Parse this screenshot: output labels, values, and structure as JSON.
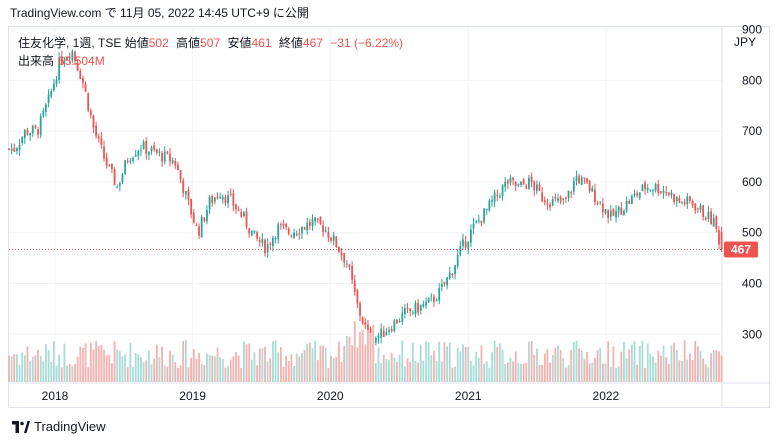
{
  "header": {
    "caption": "TradingView.com で 11月 05, 2022 14:45 UTC+9 に公開"
  },
  "legend": {
    "symbol_line": "住友化学, 1週, TSE",
    "open_label": "始値",
    "open": "502",
    "high_label": "高値",
    "high": "507",
    "low_label": "安値",
    "low": "461",
    "close_label": "終値",
    "close": "467",
    "change": "−31 (−6.22%)",
    "volume_label": "出来高",
    "volume": "65.504M"
  },
  "currency": "JPY",
  "footer": {
    "brand": "TradingView"
  },
  "colors": {
    "up": "#26a69a",
    "down": "#ef5350",
    "vol_up": "#a9dcd6",
    "vol_down": "#f5b1af",
    "grid": "#f0f3fa"
  },
  "chart_data": {
    "type": "candlestick",
    "title": "住友化学, 1週, TSE",
    "ylabel": "JPY",
    "ylim": [
      210,
      905
    ],
    "yticks": [
      300,
      400,
      500,
      600,
      700,
      800,
      900
    ],
    "xticks": [
      "2018",
      "2019",
      "2020",
      "2021",
      "2022"
    ],
    "last_price": 467,
    "series": [
      {
        "name": "price_waypoints",
        "x": [
          "2017-09",
          "2017-10",
          "2017-11",
          "2017-12",
          "2018-01",
          "2018-02",
          "2018-03",
          "2018-04",
          "2018-05",
          "2018-06",
          "2018-07",
          "2018-08",
          "2018-09",
          "2018-10",
          "2018-11",
          "2018-12",
          "2019-01",
          "2019-02",
          "2019-03",
          "2019-04",
          "2019-05",
          "2019-06",
          "2019-07",
          "2019-08",
          "2019-09",
          "2019-10",
          "2019-11",
          "2019-12",
          "2020-01",
          "2020-02",
          "2020-03",
          "2020-04",
          "2020-05",
          "2020-06",
          "2020-07",
          "2020-08",
          "2020-09",
          "2020-10",
          "2020-11",
          "2020-12",
          "2021-01",
          "2021-02",
          "2021-03",
          "2021-04",
          "2021-05",
          "2021-06",
          "2021-07",
          "2021-08",
          "2021-09",
          "2021-10",
          "2021-11",
          "2021-12",
          "2022-01",
          "2022-02",
          "2022-03",
          "2022-04",
          "2022-05",
          "2022-06",
          "2022-07",
          "2022-08",
          "2022-09",
          "2022-10",
          "2022-11"
        ],
        "values": [
          665,
          700,
          700,
          760,
          840,
          860,
          800,
          700,
          640,
          590,
          650,
          670,
          660,
          650,
          640,
          570,
          500,
          560,
          580,
          560,
          530,
          490,
          470,
          510,
          500,
          510,
          520,
          510,
          480,
          440,
          350,
          290,
          300,
          320,
          340,
          350,
          360,
          380,
          420,
          470,
          510,
          540,
          570,
          600,
          590,
          600,
          570,
          560,
          560,
          610,
          590,
          560,
          530,
          550,
          570,
          590,
          590,
          580,
          560,
          560,
          540,
          520,
          467
        ]
      },
      {
        "name": "volume",
        "unit": "M",
        "latest": 65.504
      }
    ]
  }
}
